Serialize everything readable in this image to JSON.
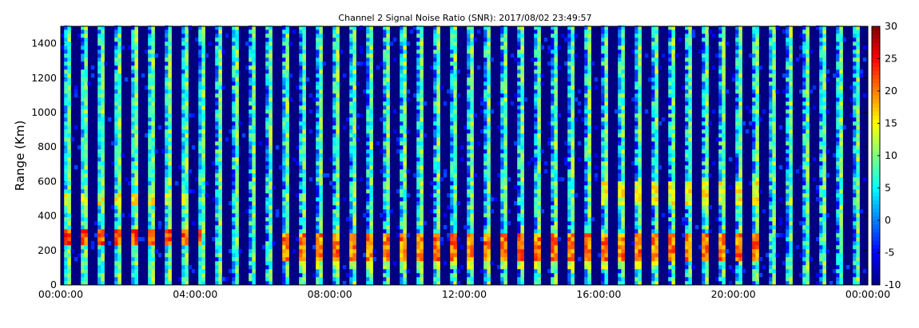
{
  "chart_data": {
    "type": "heatmap",
    "title": "Channel 2 Signal Noise Ratio (SNR): 2017/08/02 23:49:57",
    "xlabel": "",
    "ylabel": "Range (Km)",
    "x_ticks": [
      "00:00:00",
      "04:00:00",
      "08:00:00",
      "12:00:00",
      "16:00:00",
      "20:00:00",
      "00:00:00"
    ],
    "x_range_hours": [
      0,
      24
    ],
    "y_ticks": [
      0,
      200,
      400,
      600,
      800,
      1000,
      1200,
      1400
    ],
    "ylim": [
      0,
      1500
    ],
    "colorbar": {
      "ticks": [
        -10,
        -5,
        0,
        5,
        10,
        15,
        20,
        25,
        30
      ],
      "range": [
        -10,
        30
      ],
      "colormap": "jet"
    },
    "grid": false,
    "features": [
      {
        "label": "early echo band",
        "start_hour": 0,
        "end_hour": 4.2,
        "range_km": [
          220,
          320
        ],
        "snr": 22
      },
      {
        "label": "early echo band 2",
        "start_hour": 0,
        "end_hour": 3.8,
        "range_km": [
          460,
          540
        ],
        "snr": 14
      },
      {
        "label": "day echo low",
        "start_hour": 6.5,
        "end_hour": 20.8,
        "range_km": [
          150,
          300
        ],
        "snr": 20
      },
      {
        "label": "day echo 100km",
        "start_hour": 6.8,
        "end_hour": 18.0,
        "range_km": [
          90,
          130
        ],
        "snr": 12
      },
      {
        "label": "evening echo",
        "start_hour": 16.0,
        "end_hour": 21.0,
        "range_km": [
          470,
          600
        ],
        "snr": 14
      }
    ]
  }
}
